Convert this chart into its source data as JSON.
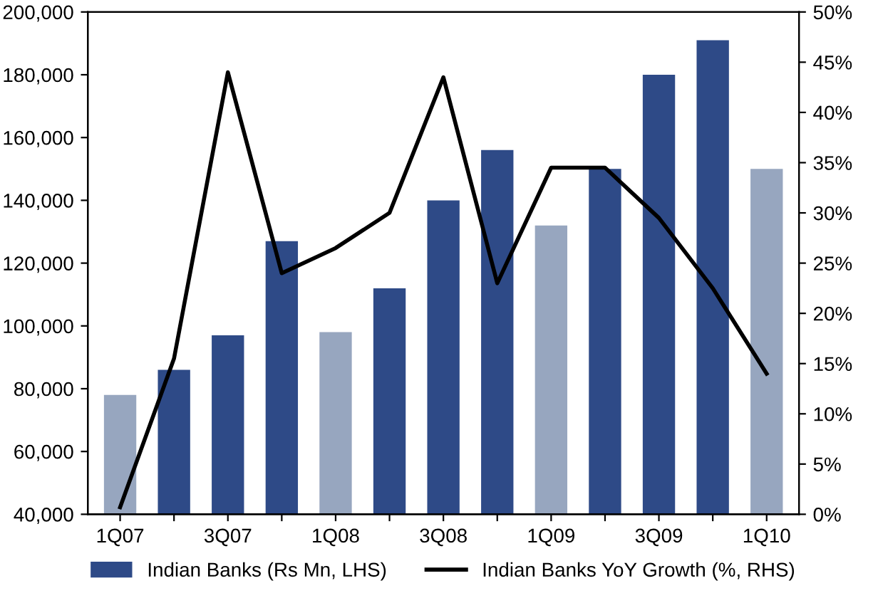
{
  "chart_data": {
    "type": "bar",
    "categories": [
      "1Q07",
      null,
      "3Q07",
      null,
      "1Q08",
      null,
      "3Q08",
      null,
      "1Q09",
      null,
      "3Q09",
      null,
      "1Q10"
    ],
    "series": [
      {
        "name": "Indian Banks (Rs Mn, LHS)",
        "color": "#2e4a87",
        "colors": [
          "#97a6bf",
          "#2e4a87",
          "#2e4a87",
          "#2e4a87",
          "#97a6bf",
          "#2e4a87",
          "#2e4a87",
          "#2e4a87",
          "#97a6bf",
          "#2e4a87",
          "#2e4a87",
          "#2e4a87",
          "#97a6bf"
        ],
        "values": [
          78000,
          86000,
          97000,
          127000,
          98000,
          112000,
          140000,
          156000,
          132000,
          150000,
          180000,
          191000,
          150000
        ]
      },
      {
        "name": "Indian Banks YoY Growth (%, RHS)",
        "type": "line",
        "axis": "y2",
        "color": "#000000",
        "values": [
          0.7,
          15.5,
          44,
          24,
          26.5,
          30,
          43.5,
          23,
          34.5,
          34.5,
          29.5,
          22.5,
          14
        ]
      }
    ],
    "ylim": [
      40000,
      200000
    ],
    "yticks": [
      {
        "value": 40000,
        "label": "40,000"
      },
      {
        "value": 60000,
        "label": "60,000"
      },
      {
        "value": 80000,
        "label": "80,000"
      },
      {
        "value": 100000,
        "label": "100,000"
      },
      {
        "value": 120000,
        "label": "120,000"
      },
      {
        "value": 140000,
        "label": "140,000"
      },
      {
        "value": 160000,
        "label": "160,000"
      },
      {
        "value": 180000,
        "label": "180,000"
      },
      {
        "value": 200000,
        "label": "200,000"
      }
    ],
    "y2lim": [
      0,
      50
    ],
    "y2ticks": [
      {
        "value": 0,
        "label": "0%"
      },
      {
        "value": 5,
        "label": "5%"
      },
      {
        "value": 10,
        "label": "10%"
      },
      {
        "value": 15,
        "label": "15%"
      },
      {
        "value": 20,
        "label": "20%"
      },
      {
        "value": 25,
        "label": "25%"
      },
      {
        "value": 30,
        "label": "30%"
      },
      {
        "value": 35,
        "label": "35%"
      },
      {
        "value": 40,
        "label": "40%"
      },
      {
        "value": 45,
        "label": "45%"
      },
      {
        "value": 50,
        "label": "50%"
      }
    ],
    "grid": false,
    "legend": "bottom",
    "marker": "none",
    "line_style": "solid"
  }
}
